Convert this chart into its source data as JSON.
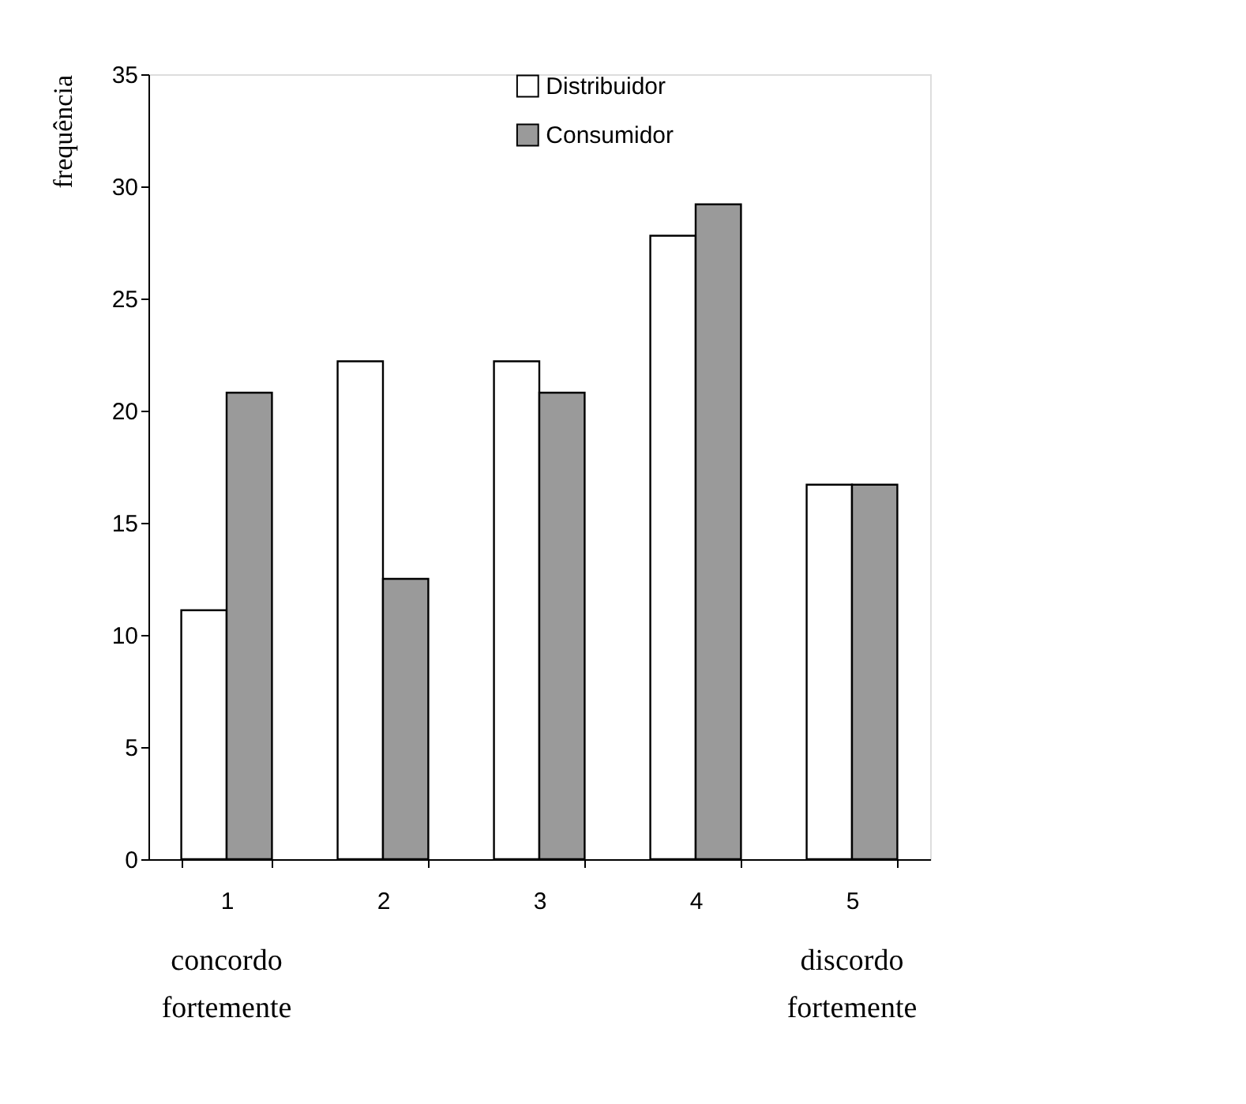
{
  "chart_data": {
    "type": "bar",
    "ylabel": "frequência",
    "categories": [
      "1",
      "2",
      "3",
      "4",
      "5"
    ],
    "series": [
      {
        "name": "Distribuidor",
        "color": "#ffffff",
        "values": [
          11.1,
          22.2,
          22.2,
          27.8,
          16.7
        ]
      },
      {
        "name": "Consumidor",
        "color": "#9a9a9a",
        "values": [
          20.8,
          12.5,
          20.8,
          29.2,
          16.7
        ]
      }
    ],
    "ylim": [
      0,
      35
    ],
    "yticks": [
      0,
      5,
      10,
      15,
      20,
      25,
      30,
      35
    ],
    "grid": false,
    "legend": "top",
    "annotations": [
      "concordo fortemente",
      "discordo fortemente"
    ]
  }
}
